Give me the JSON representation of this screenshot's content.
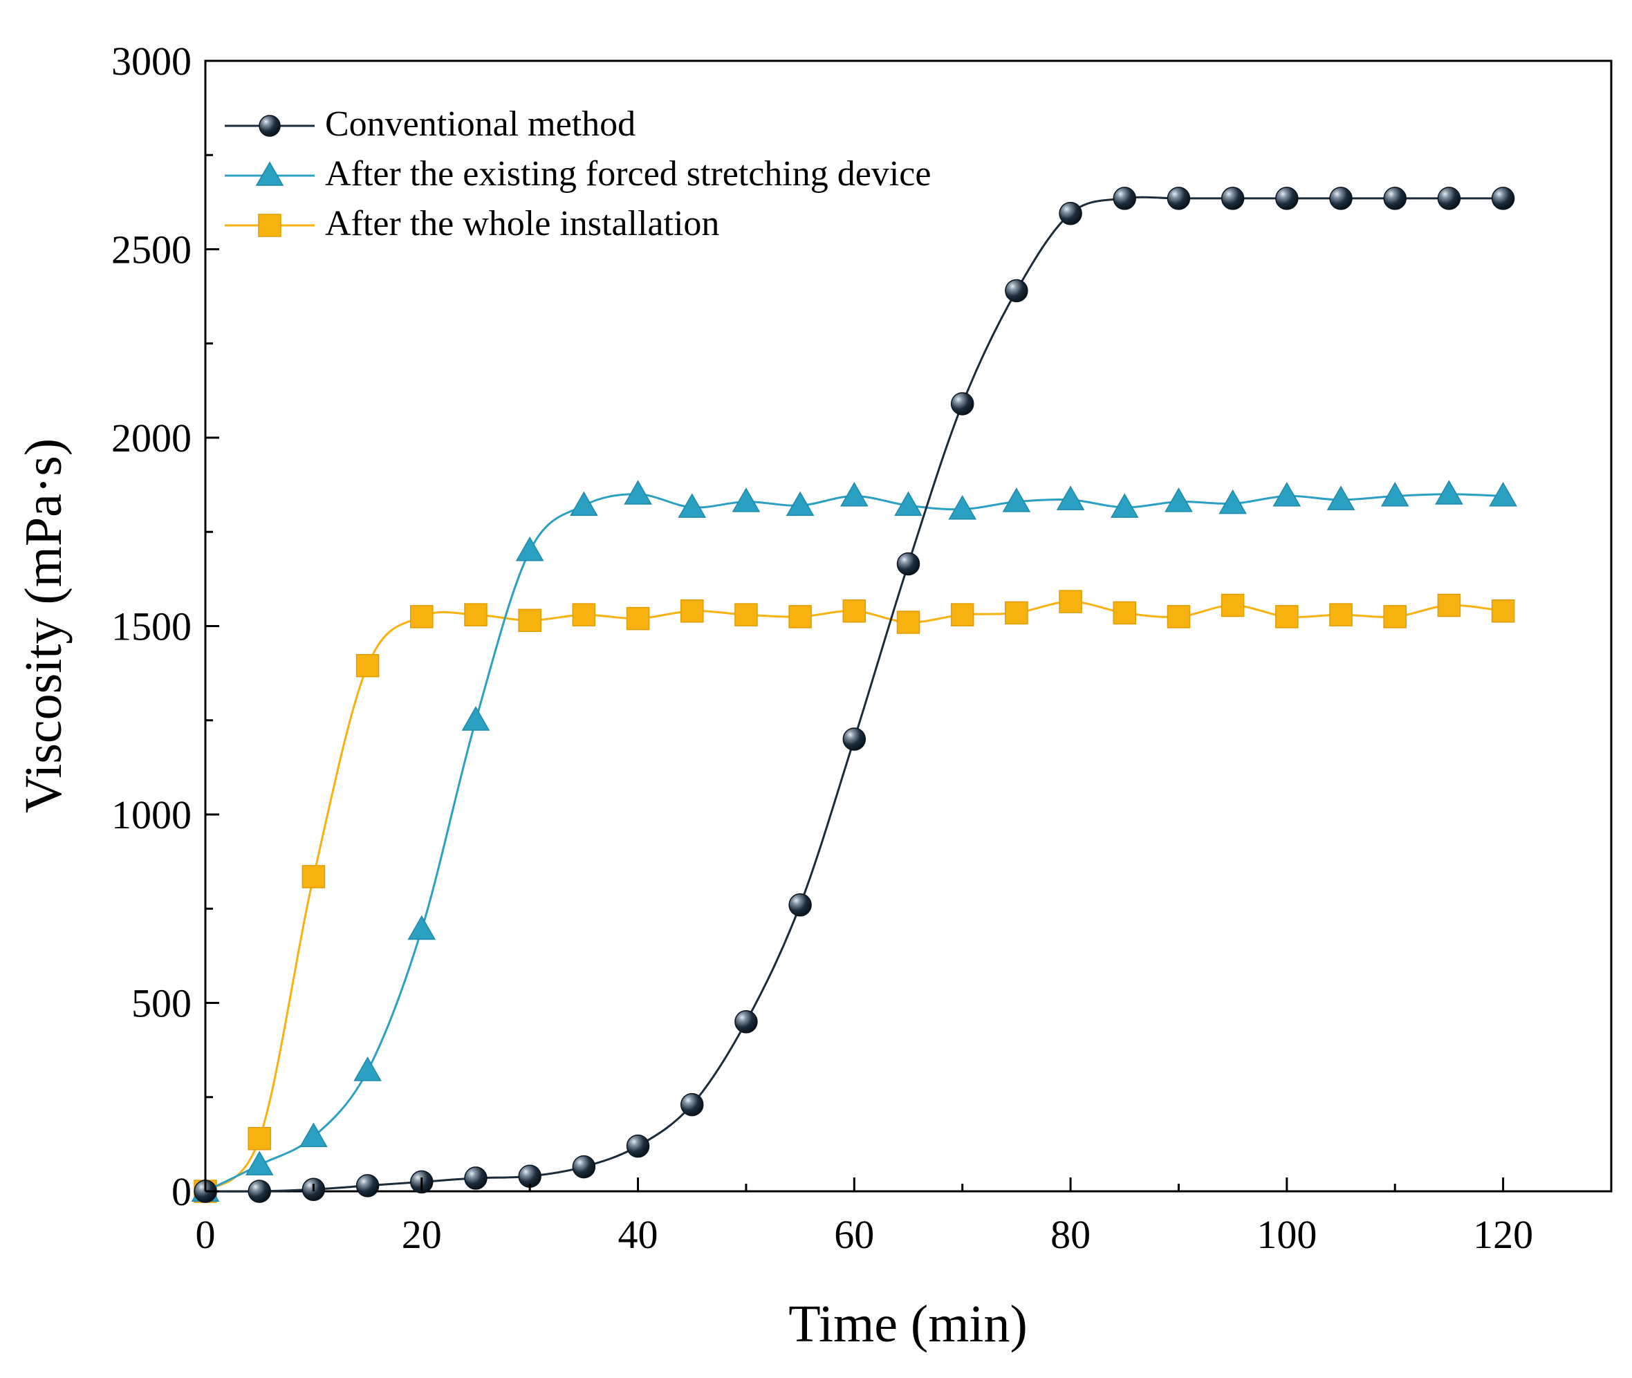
{
  "chart_data": {
    "type": "line",
    "title": "",
    "xlabel": "Time (min)",
    "ylabel": "Viscosity (mPa·s)",
    "xlim": [
      0,
      130
    ],
    "ylim": [
      0,
      3000
    ],
    "xticks": [
      0,
      20,
      40,
      60,
      80,
      100,
      120
    ],
    "yticks": [
      0,
      500,
      1000,
      1500,
      2000,
      2500,
      3000
    ],
    "grid": false,
    "legend_position": "top-left",
    "x": [
      0,
      5,
      10,
      15,
      20,
      25,
      30,
      35,
      40,
      45,
      50,
      55,
      60,
      65,
      70,
      75,
      80,
      85,
      90,
      95,
      100,
      105,
      110,
      115,
      120
    ],
    "series": [
      {
        "name": "Conventional method",
        "marker": "circle",
        "color": "#1b2b3a",
        "values": [
          0,
          0,
          5,
          15,
          25,
          35,
          40,
          65,
          120,
          230,
          450,
          760,
          1200,
          1665,
          2090,
          2390,
          2595,
          2635,
          2635,
          2635,
          2635,
          2635,
          2635,
          2635,
          2635
        ]
      },
      {
        "name": "After the existing forced stretching device",
        "marker": "triangle",
        "color": "#2aa0c2",
        "values": [
          0,
          70,
          145,
          320,
          695,
          1250,
          1700,
          1820,
          1850,
          1815,
          1830,
          1820,
          1845,
          1820,
          1810,
          1830,
          1835,
          1815,
          1830,
          1825,
          1845,
          1835,
          1845,
          1850,
          1845
        ]
      },
      {
        "name": "After the whole installation",
        "marker": "square",
        "color": "#f7b210",
        "values": [
          0,
          140,
          835,
          1395,
          1525,
          1530,
          1515,
          1530,
          1520,
          1540,
          1530,
          1525,
          1540,
          1510,
          1530,
          1535,
          1565,
          1535,
          1525,
          1555,
          1525,
          1530,
          1525,
          1555,
          1540
        ]
      }
    ]
  }
}
